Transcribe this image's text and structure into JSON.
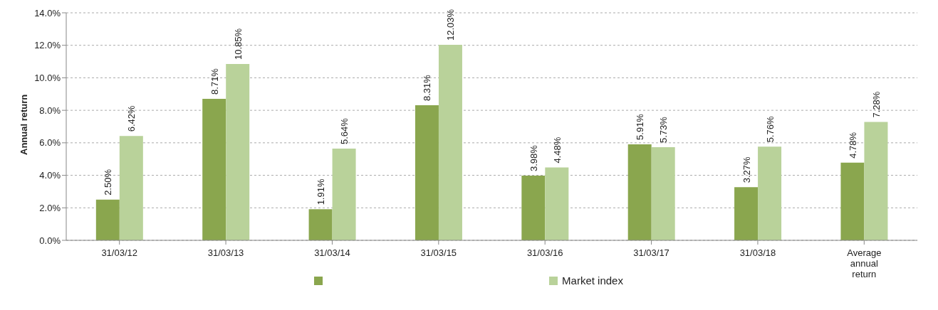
{
  "chart_data": {
    "type": "bar",
    "ylabel": "Annual return",
    "categories": [
      "31/03/12",
      "31/03/13",
      "31/03/14",
      "31/03/15",
      "31/03/16",
      "31/03/17",
      "31/03/18",
      "Average annual return"
    ],
    "series": [
      {
        "color": "#8aa64e",
        "values": [
          2.5,
          8.71,
          1.91,
          8.31,
          3.98,
          5.91,
          3.27,
          4.78
        ],
        "value_labels": [
          "2.50%",
          "8.71%",
          "1.91%",
          "8.31%",
          "3.98%",
          "5.91%",
          "3.27%",
          "4.78%"
        ]
      },
      {
        "name": "Market index",
        "color": "#b9d29a",
        "values": [
          6.42,
          10.85,
          5.64,
          12.03,
          4.48,
          5.73,
          5.76,
          7.28
        ],
        "value_labels": [
          "6.42%",
          "10.85%",
          "5.64%",
          "12.03%",
          "4.48%",
          "5.73%",
          "5.76%",
          "7.28%"
        ]
      }
    ],
    "ylim": [
      0,
      14
    ],
    "yticks": [
      {
        "value": 0,
        "label": "0.0%"
      },
      {
        "value": 2,
        "label": "2.0%"
      },
      {
        "value": 4,
        "label": "4.0%"
      },
      {
        "value": 6,
        "label": "6.0%"
      },
      {
        "value": 8,
        "label": "8.0%"
      },
      {
        "value": 10,
        "label": "10.0%"
      },
      {
        "value": 12,
        "label": "12.0%"
      },
      {
        "value": 14,
        "label": "14.0%"
      }
    ],
    "grid": "y",
    "legend": "bottom"
  }
}
